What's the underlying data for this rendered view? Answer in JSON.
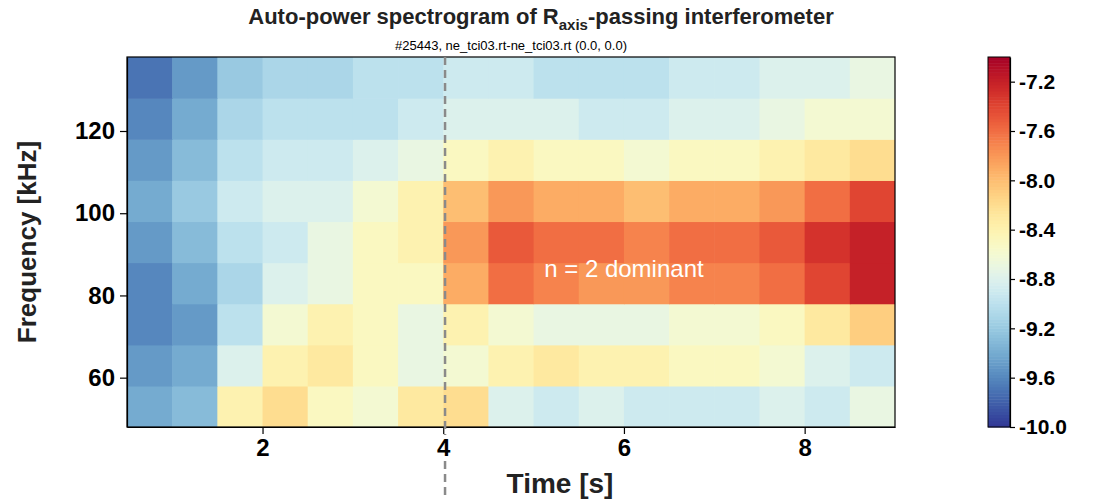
{
  "chart_data": {
    "type": "heatmap",
    "title_parts": [
      "Auto-power spectrogram of R",
      "axis",
      "-passing interferometer"
    ],
    "subtitle": "#25443, ne_tci03.rt-ne_tci03.rt (0.0, 0.0)",
    "x_label": "Time [s]",
    "y_label": "Frequency [kHz]",
    "xlim": [
      0.5,
      9.0
    ],
    "xticks": [
      2,
      4,
      6,
      8
    ],
    "ylim": [
      48,
      138
    ],
    "yticks": [
      60,
      80,
      100,
      120
    ],
    "x_bins": [
      0.5,
      1.0,
      1.5,
      2.0,
      2.5,
      3.0,
      3.5,
      4.0,
      4.5,
      5.0,
      5.5,
      6.0,
      6.5,
      7.0,
      7.5,
      8.0,
      8.5,
      9.0
    ],
    "y_bins": [
      48,
      58,
      68,
      78,
      88,
      98,
      108,
      118,
      128,
      138
    ],
    "z": [
      [
        -9.4,
        -9.3,
        -8.4,
        -8.2,
        -8.5,
        -8.6,
        -8.3,
        -8.2,
        -8.8,
        -8.9,
        -8.8,
        -8.9,
        -8.9,
        -8.9,
        -8.8,
        -8.9,
        -8.7
      ],
      [
        -9.5,
        -9.4,
        -8.8,
        -8.4,
        -8.3,
        -8.5,
        -8.7,
        -8.6,
        -8.4,
        -8.3,
        -8.4,
        -8.4,
        -8.5,
        -8.5,
        -8.6,
        -8.8,
        -8.9
      ],
      [
        -9.6,
        -9.5,
        -9.0,
        -8.6,
        -8.4,
        -8.5,
        -8.7,
        -8.4,
        -8.6,
        -8.7,
        -8.7,
        -8.7,
        -8.6,
        -8.6,
        -8.5,
        -8.3,
        -8.1
      ],
      [
        -9.6,
        -9.4,
        -9.1,
        -8.8,
        -8.7,
        -8.5,
        -8.5,
        -7.9,
        -7.6,
        -7.7,
        -7.8,
        -7.8,
        -7.7,
        -7.7,
        -7.6,
        -7.4,
        -7.2
      ],
      [
        -9.5,
        -9.3,
        -9.0,
        -8.9,
        -8.7,
        -8.5,
        -8.4,
        -7.8,
        -7.5,
        -7.6,
        -7.6,
        -7.7,
        -7.6,
        -7.6,
        -7.5,
        -7.3,
        -7.2
      ],
      [
        -9.4,
        -9.2,
        -8.9,
        -8.8,
        -8.8,
        -8.6,
        -8.4,
        -8.0,
        -7.8,
        -7.9,
        -7.9,
        -8.0,
        -7.9,
        -7.9,
        -7.8,
        -7.6,
        -7.4
      ],
      [
        -9.5,
        -9.3,
        -9.0,
        -8.9,
        -8.9,
        -8.8,
        -8.7,
        -8.5,
        -8.4,
        -8.5,
        -8.5,
        -8.6,
        -8.5,
        -8.5,
        -8.4,
        -8.3,
        -8.2
      ],
      [
        -9.6,
        -9.4,
        -9.1,
        -9.0,
        -9.0,
        -9.0,
        -8.9,
        -8.8,
        -8.8,
        -8.8,
        -8.9,
        -8.9,
        -8.8,
        -8.8,
        -8.7,
        -8.6,
        -8.6
      ],
      [
        -9.7,
        -9.5,
        -9.2,
        -9.1,
        -9.1,
        -9.0,
        -9.0,
        -8.9,
        -8.9,
        -9.0,
        -9.0,
        -9.0,
        -8.9,
        -8.9,
        -8.8,
        -8.8,
        -8.7
      ]
    ],
    "colorbar": {
      "lim": [
        -10.0,
        -7.0
      ],
      "ticks": [
        -7.2,
        -7.6,
        {
          "value": -8.0,
          "label": "-8.0"
        },
        -8.4,
        -8.8,
        -9.2,
        -9.6,
        {
          "value": -10.0,
          "label": "-10.0"
        }
      ]
    },
    "annotations": [
      {
        "text": "n = 2 dominant",
        "x": 6.0,
        "y": 86
      }
    ],
    "vline": {
      "x": 4.02,
      "line_style": "dashed"
    }
  }
}
